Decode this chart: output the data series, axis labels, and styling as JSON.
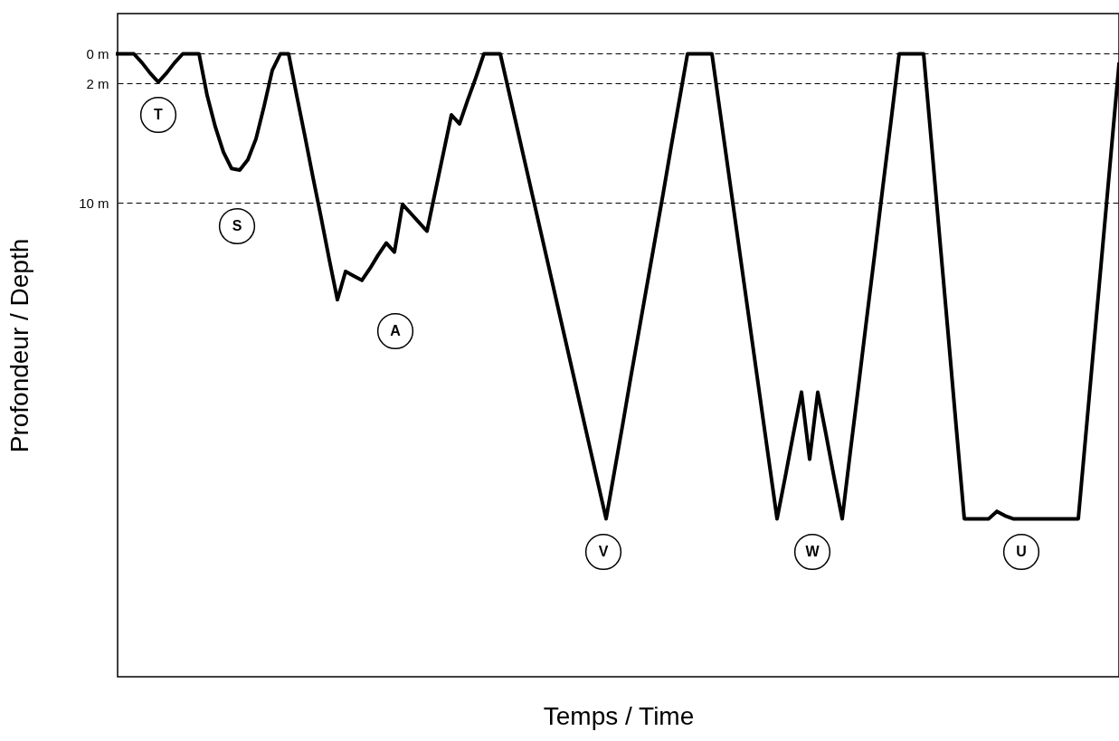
{
  "chart_data": {
    "type": "line",
    "xlabel": "Temps / Time",
    "ylabel": "Profondeur / Depth",
    "categories": [
      null,
      null,
      null,
      null,
      null,
      null,
      null,
      null,
      null,
      null,
      null,
      null,
      null,
      null,
      null,
      null,
      null,
      null,
      null,
      null,
      null,
      null,
      null,
      null,
      null,
      null,
      null,
      null,
      null,
      null,
      null,
      null,
      null,
      null,
      null,
      null,
      null,
      null,
      null,
      null,
      null,
      null,
      null,
      null,
      null,
      null,
      null,
      null,
      null,
      null,
      null,
      null,
      null,
      null,
      null,
      null,
      null,
      null,
      null,
      null,
      null,
      null,
      null,
      null,
      null,
      null,
      null,
      null,
      null,
      null,
      null,
      null,
      null,
      null,
      null,
      null,
      null,
      null,
      null,
      null,
      null,
      null,
      null,
      null,
      null,
      null,
      null,
      null,
      null,
      null,
      null,
      null,
      null,
      null,
      null,
      null,
      null,
      null,
      null,
      null,
      null,
      null,
      null,
      null,
      null,
      null,
      null,
      null,
      null,
      null,
      null,
      null,
      null,
      null,
      null,
      null,
      null,
      null,
      null,
      null,
      null,
      null,
      null,
      null
    ],
    "series": [
      {
        "color": "#000000",
        "values": [
          0,
          0,
          0,
          0.6,
          1.3,
          1.9,
          1.3,
          0.6,
          0,
          0,
          0,
          2.8,
          4.9,
          6.6,
          7.7,
          7.8,
          7.1,
          5.7,
          3.5,
          1.1,
          0,
          0,
          2.8,
          5.5,
          8.3,
          11,
          13.8,
          16.5,
          14.6,
          14.9,
          15.2,
          14.4,
          13.5,
          12.7,
          13.3,
          10.1,
          10.7,
          11.3,
          11.9,
          9.3,
          6.7,
          4.1,
          4.7,
          3.1,
          1.6,
          0,
          0,
          0,
          2.4,
          4.8,
          7.2,
          9.6,
          12,
          14.4,
          16.8,
          19.2,
          21.6,
          24,
          26.4,
          28.8,
          31.2,
          28.1,
          25,
          21.8,
          18.7,
          15.6,
          12.5,
          9.4,
          6.2,
          3.1,
          0,
          0,
          0,
          0,
          3.9,
          7.8,
          11.7,
          15.6,
          19.5,
          23.4,
          27.3,
          31.2,
          28.4,
          25.5,
          22.7,
          27.2,
          22.7,
          25.5,
          28.4,
          31.2,
          26.7,
          22.3,
          17.8,
          13.4,
          8.9,
          4.5,
          0,
          0,
          0,
          0,
          6.2,
          12.5,
          18.7,
          25,
          31.2,
          31.2,
          31.2,
          31.2,
          30.7,
          31.0,
          31.2,
          31.2,
          31.2,
          31.2,
          31.2,
          31.2,
          31.2,
          31.2,
          31.2,
          25.1,
          19,
          12.9,
          6.8,
          0.7
        ]
      }
    ],
    "ylim": [
      41.8,
      -2.7
    ],
    "yticks": [
      {
        "value": 0,
        "label": "0 m"
      },
      {
        "value": 2,
        "label": "2 m"
      },
      {
        "value": 10,
        "label": "10 m"
      }
    ],
    "tick_labels": "y",
    "grid": "y",
    "marker": "none",
    "line_style": "solid",
    "annotations": [
      "T",
      "S",
      "A",
      "V",
      "W",
      "U"
    ]
  }
}
